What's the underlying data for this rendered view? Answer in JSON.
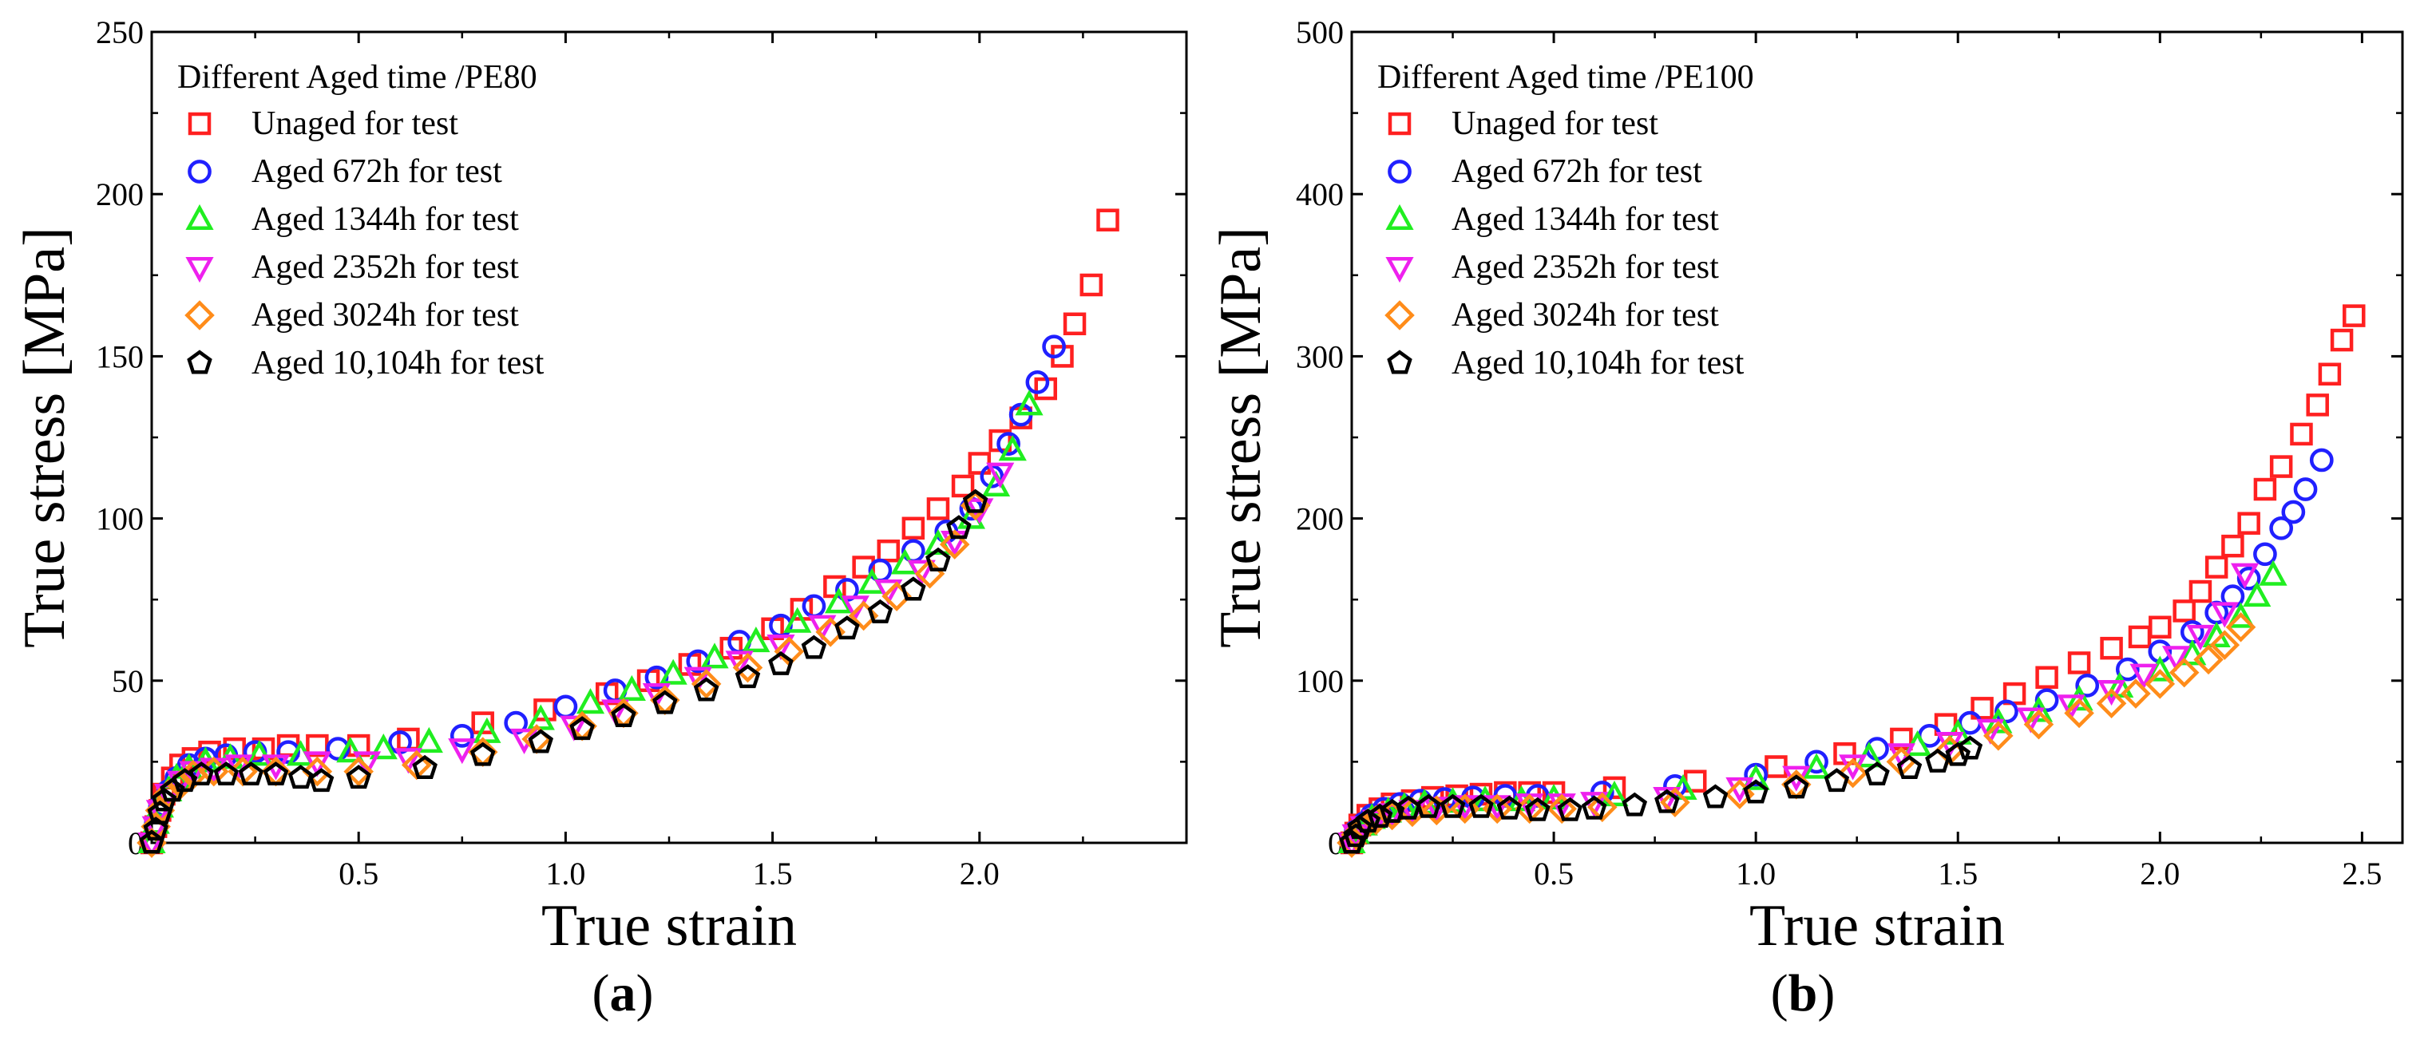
{
  "chart_data": [
    {
      "type": "scatter",
      "panel_label": "a",
      "xlabel": "True strain",
      "ylabel": "True stress [MPa]",
      "xlim": [
        0,
        2.5
      ],
      "ylim": [
        0,
        250
      ],
      "xticks": [
        0.5,
        1.0,
        1.5,
        2.0
      ],
      "xtick_labels": [
        "0.5",
        "1.0",
        "1.5",
        "2.0"
      ],
      "yticks": [
        0,
        50,
        100,
        150,
        200,
        250
      ],
      "ytick_labels": [
        "0",
        "50",
        "100",
        "150",
        "200",
        "250"
      ],
      "legend_title": "Different Aged time /PE80",
      "legend_position": "top-left",
      "grid": false,
      "series": [
        {
          "name": "Unaged for test",
          "marker": "square",
          "color": "#ff2020",
          "x": [
            0,
            0.01,
            0.02,
            0.03,
            0.05,
            0.07,
            0.1,
            0.14,
            0.2,
            0.27,
            0.33,
            0.4,
            0.5,
            0.62,
            0.8,
            0.95,
            1.1,
            1.2,
            1.3,
            1.4,
            1.5,
            1.57,
            1.65,
            1.72,
            1.78,
            1.84,
            1.9,
            1.96,
            2.0,
            2.05,
            2.1,
            2.16,
            2.2,
            2.23,
            2.27,
            2.31
          ],
          "y": [
            0,
            5,
            10,
            15,
            20,
            24,
            26,
            28,
            29,
            29,
            30,
            30,
            30,
            32,
            37,
            41,
            46,
            50,
            55,
            60,
            66,
            72,
            79,
            85,
            90,
            97,
            103,
            110,
            117,
            124,
            131,
            140,
            150,
            160,
            172,
            192
          ]
        },
        {
          "name": "Aged 672h  for test",
          "marker": "circle",
          "color": "#2020ff",
          "x": [
            0,
            0.01,
            0.02,
            0.04,
            0.06,
            0.09,
            0.13,
            0.18,
            0.25,
            0.33,
            0.45,
            0.6,
            0.75,
            0.88,
            1.0,
            1.12,
            1.22,
            1.32,
            1.42,
            1.52,
            1.6,
            1.68,
            1.76,
            1.84,
            1.92,
            1.98,
            2.03,
            2.07,
            2.1,
            2.14,
            2.18
          ],
          "y": [
            0,
            6,
            11,
            16,
            20,
            24,
            26,
            27,
            28,
            28,
            29,
            31,
            33,
            37,
            42,
            47,
            51,
            56,
            62,
            67,
            73,
            78,
            84,
            90,
            96,
            103,
            113,
            123,
            132,
            142,
            153
          ]
        },
        {
          "name": "Aged 1344h  for test",
          "marker": "triangle-up",
          "color": "#20ee20",
          "x": [
            0,
            0.01,
            0.02,
            0.04,
            0.06,
            0.09,
            0.13,
            0.19,
            0.26,
            0.36,
            0.48,
            0.56,
            0.67,
            0.81,
            0.94,
            1.06,
            1.16,
            1.26,
            1.36,
            1.46,
            1.56,
            1.66,
            1.74,
            1.82,
            1.9,
            1.98,
            2.04,
            2.08,
            2.12
          ],
          "y": [
            0,
            6,
            11,
            16,
            20,
            23,
            25,
            26,
            27,
            27,
            28,
            29,
            31,
            34,
            38,
            43,
            47,
            52,
            57,
            62,
            68,
            74,
            80,
            86,
            92,
            100,
            110,
            121,
            135
          ]
        },
        {
          "name": "Aged 2352h  for test",
          "marker": "triangle-down",
          "color": "#ee20ee",
          "x": [
            0,
            0.01,
            0.02,
            0.04,
            0.07,
            0.1,
            0.15,
            0.21,
            0.3,
            0.4,
            0.52,
            0.62,
            0.75,
            0.9,
            1.02,
            1.12,
            1.22,
            1.32,
            1.42,
            1.52,
            1.62,
            1.7,
            1.78,
            1.86,
            1.94,
            2.0,
            2.05
          ],
          "y": [
            0,
            5,
            10,
            15,
            19,
            22,
            23,
            24,
            24,
            25,
            25,
            26,
            29,
            32,
            36,
            41,
            46,
            51,
            56,
            61,
            67,
            73,
            78,
            84,
            93,
            103,
            114
          ]
        },
        {
          "name": "Aged 3024h  for test",
          "marker": "diamond",
          "color": "#ff8c1a",
          "x": [
            0,
            0.01,
            0.02,
            0.04,
            0.07,
            0.1,
            0.15,
            0.22,
            0.3,
            0.4,
            0.5,
            0.64,
            0.8,
            0.93,
            1.04,
            1.14,
            1.24,
            1.34,
            1.44,
            1.54,
            1.64,
            1.72,
            1.8,
            1.88,
            1.94,
            1.99
          ],
          "y": [
            0,
            5,
            10,
            15,
            18,
            21,
            22,
            22,
            22,
            22,
            22,
            24,
            28,
            32,
            36,
            40,
            44,
            49,
            54,
            59,
            65,
            70,
            76,
            83,
            92,
            104
          ]
        },
        {
          "name": "Aged 10,104h  for test",
          "marker": "pentagon",
          "color": "#000000",
          "x": [
            0,
            0.01,
            0.02,
            0.03,
            0.05,
            0.08,
            0.12,
            0.18,
            0.24,
            0.3,
            0.36,
            0.41,
            0.5,
            0.66,
            0.8,
            0.94,
            1.04,
            1.14,
            1.24,
            1.34,
            1.44,
            1.52,
            1.6,
            1.68,
            1.76,
            1.84,
            1.9,
            1.95,
            1.99
          ],
          "y": [
            0,
            4,
            9,
            13,
            16,
            19,
            21,
            21,
            21,
            21,
            20,
            19,
            20,
            23,
            27,
            31,
            35,
            39,
            43,
            47,
            51,
            55,
            60,
            66,
            71,
            78,
            87,
            97,
            105
          ]
        }
      ]
    },
    {
      "type": "scatter",
      "panel_label": "b",
      "xlabel": "True strain",
      "ylabel": "True stress [MPa]",
      "xlim": [
        0,
        2.6
      ],
      "ylim": [
        0,
        500
      ],
      "xticks": [
        0.5,
        1.0,
        1.5,
        2.0,
        2.5
      ],
      "xtick_labels": [
        "0.5",
        "1.0",
        "1.5",
        "2.0",
        "2.5"
      ],
      "yticks": [
        0,
        100,
        200,
        300,
        400,
        500
      ],
      "ytick_labels": [
        "0",
        "100",
        "200",
        "300",
        "400",
        "500"
      ],
      "legend_title": "Different Aged time /PE100",
      "legend_position": "top-left",
      "grid": false,
      "series": [
        {
          "name": "Unaged for test",
          "marker": "square",
          "color": "#ff2020",
          "x": [
            0,
            0.01,
            0.02,
            0.04,
            0.07,
            0.1,
            0.15,
            0.2,
            0.26,
            0.32,
            0.38,
            0.44,
            0.5,
            0.65,
            0.85,
            1.05,
            1.22,
            1.36,
            1.47,
            1.56,
            1.64,
            1.72,
            1.8,
            1.88,
            1.95,
            2.0,
            2.06,
            2.1,
            2.14,
            2.18,
            2.22,
            2.26,
            2.3,
            2.35,
            2.39,
            2.42,
            2.45,
            2.48
          ],
          "y": [
            0,
            6,
            11,
            17,
            21,
            24,
            26,
            28,
            29,
            30,
            31,
            31,
            31,
            34,
            38,
            47,
            55,
            64,
            73,
            83,
            92,
            102,
            111,
            120,
            127,
            133,
            143,
            155,
            170,
            183,
            197,
            218,
            232,
            252,
            270,
            289,
            310,
            325
          ]
        },
        {
          "name": "Aged 672h  for test",
          "marker": "circle",
          "color": "#2020ff",
          "x": [
            0,
            0.01,
            0.03,
            0.05,
            0.08,
            0.12,
            0.17,
            0.23,
            0.3,
            0.38,
            0.46,
            0.62,
            0.8,
            1.0,
            1.15,
            1.3,
            1.43,
            1.53,
            1.62,
            1.72,
            1.82,
            1.92,
            2.0,
            2.08,
            2.14,
            2.18,
            2.22,
            2.26,
            2.3,
            2.33,
            2.36,
            2.4
          ],
          "y": [
            0,
            7,
            12,
            17,
            21,
            24,
            26,
            27,
            28,
            29,
            29,
            31,
            35,
            42,
            50,
            58,
            66,
            74,
            81,
            88,
            97,
            107,
            118,
            130,
            142,
            152,
            163,
            178,
            194,
            204,
            218,
            236
          ]
        },
        {
          "name": "Aged 1344h  for test",
          "marker": "triangle-up",
          "color": "#20ee20",
          "x": [
            0,
            0.01,
            0.03,
            0.05,
            0.09,
            0.13,
            0.18,
            0.25,
            0.33,
            0.42,
            0.5,
            0.65,
            0.82,
            1.0,
            1.15,
            1.28,
            1.4,
            1.5,
            1.6,
            1.7,
            1.8,
            1.9,
            2.0,
            2.08,
            2.14,
            2.2,
            2.24,
            2.28
          ],
          "y": [
            0,
            6,
            11,
            15,
            19,
            22,
            24,
            25,
            26,
            26,
            27,
            29,
            33,
            39,
            46,
            53,
            60,
            67,
            74,
            81,
            88,
            96,
            106,
            116,
            127,
            139,
            152,
            165
          ]
        },
        {
          "name": "Aged 2352h  for test",
          "marker": "triangle-down",
          "color": "#ee20ee",
          "x": [
            0,
            0.01,
            0.03,
            0.06,
            0.1,
            0.15,
            0.21,
            0.28,
            0.36,
            0.44,
            0.52,
            0.6,
            0.78,
            0.96,
            1.1,
            1.24,
            1.36,
            1.48,
            1.58,
            1.68,
            1.78,
            1.88,
            1.96,
            2.04,
            2.1,
            2.16,
            2.21
          ],
          "y": [
            0,
            5,
            10,
            14,
            18,
            20,
            22,
            23,
            23,
            24,
            24,
            25,
            28,
            34,
            41,
            48,
            55,
            62,
            70,
            77,
            85,
            94,
            104,
            115,
            128,
            142,
            166
          ]
        },
        {
          "name": "Aged 3024h  for test",
          "marker": "diamond",
          "color": "#ff8c1a",
          "x": [
            0,
            0.01,
            0.03,
            0.06,
            0.1,
            0.15,
            0.21,
            0.28,
            0.36,
            0.44,
            0.52,
            0.62,
            0.8,
            0.96,
            1.1,
            1.24,
            1.36,
            1.48,
            1.6,
            1.7,
            1.8,
            1.88,
            1.94,
            2.0,
            2.06,
            2.12,
            2.16,
            2.2
          ],
          "y": [
            0,
            5,
            10,
            14,
            17,
            19,
            20,
            21,
            21,
            21,
            21,
            22,
            25,
            30,
            36,
            43,
            50,
            57,
            66,
            73,
            80,
            86,
            92,
            98,
            105,
            113,
            122,
            133
          ]
        },
        {
          "name": "Aged 10,104h  for test",
          "marker": "pentagon",
          "color": "#000000",
          "x": [
            0,
            0.01,
            0.02,
            0.04,
            0.07,
            0.1,
            0.14,
            0.19,
            0.25,
            0.32,
            0.39,
            0.46,
            0.54,
            0.6,
            0.7,
            0.78,
            0.9,
            1.0,
            1.1,
            1.2,
            1.3,
            1.38,
            1.45,
            1.5,
            1.53
          ],
          "y": [
            0,
            4,
            9,
            13,
            16,
            19,
            21,
            22,
            22,
            22,
            21,
            20,
            20,
            21,
            23,
            25,
            28,
            31,
            34,
            38,
            42,
            46,
            50,
            54,
            58
          ]
        }
      ]
    }
  ],
  "captions": {
    "a": "a",
    "b": "b"
  }
}
